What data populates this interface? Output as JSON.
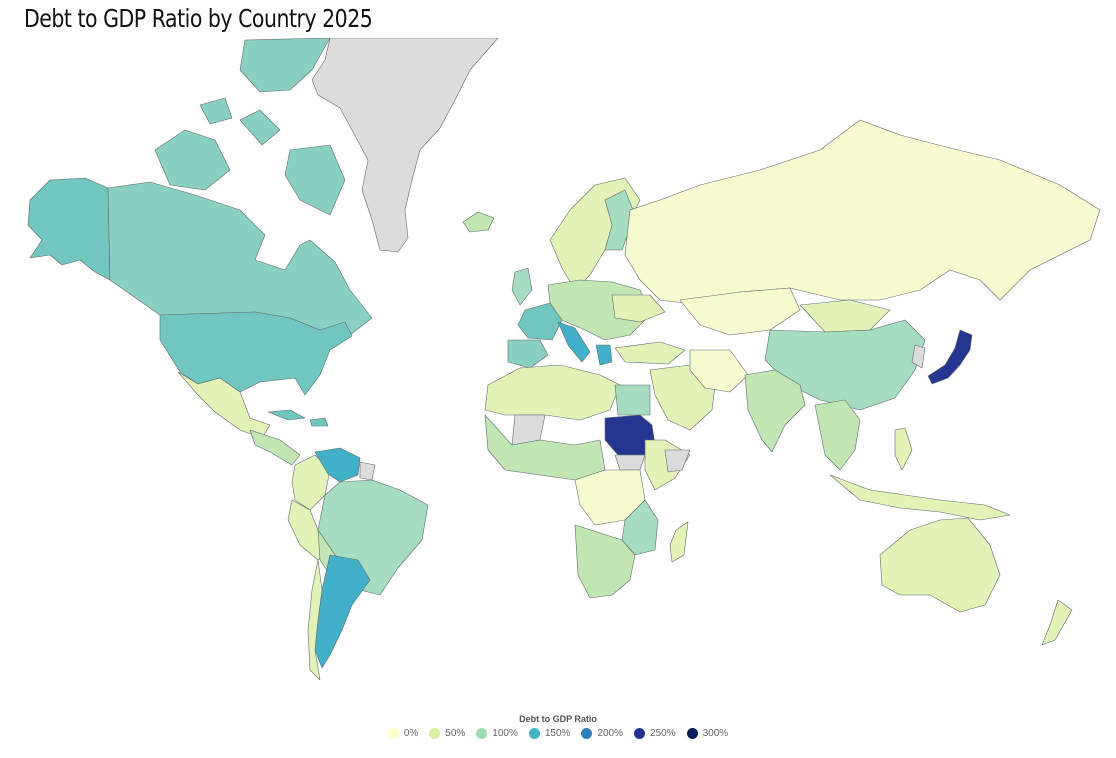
{
  "title": "Debt to GDP Ratio by Country 2025",
  "legend": {
    "title": "Debt to GDP Ratio",
    "items": [
      {
        "label": "0%",
        "color": "#ffffcc"
      },
      {
        "label": "50%",
        "color": "#d9f0a3"
      },
      {
        "label": "100%",
        "color": "#a1dab4"
      },
      {
        "label": "150%",
        "color": "#41b6c4"
      },
      {
        "label": "200%",
        "color": "#2c7fb8"
      },
      {
        "label": "250%",
        "color": "#253494"
      },
      {
        "label": "300%",
        "color": "#081d58"
      }
    ]
  },
  "colors": {
    "nodata": "#dcdcdc",
    "c0": "#f6fbd0",
    "c40": "#e3f3b8",
    "c70": "#c2e6b3",
    "c100": "#a6dcc0",
    "c120": "#8ad0c0",
    "c130": "#71c6bf",
    "c150": "#41b0c8",
    "c250": "#24368f"
  }
}
